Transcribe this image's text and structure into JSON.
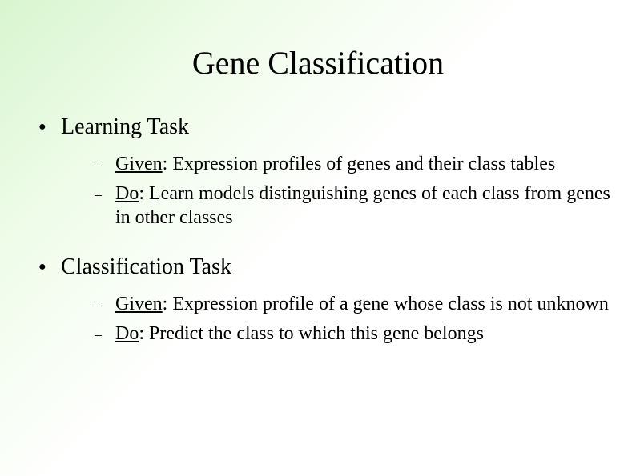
{
  "slide": {
    "title": "Gene Classification",
    "background": {
      "gradient_start": "#d8f5cf",
      "gradient_mid": "#eefce8",
      "gradient_end": "#ffffff"
    },
    "typography": {
      "title_fontsize": 40,
      "level1_fontsize": 28,
      "level2_fontsize": 24,
      "font_family": "Times New Roman",
      "text_color": "#000000"
    },
    "sections": [
      {
        "heading": "Learning Task",
        "items": [
          {
            "label": "Given",
            "body": ": Expression profiles of genes and their class tables"
          },
          {
            "label": "Do",
            "body": ": Learn models distinguishing genes of each class from genes in other classes"
          }
        ]
      },
      {
        "heading": "Classification Task",
        "items": [
          {
            "label": "Given",
            "body": ": Expression profile of a gene whose class is not unknown"
          },
          {
            "label": "Do",
            "body": ": Predict the class to which this gene belongs"
          }
        ]
      }
    ]
  }
}
